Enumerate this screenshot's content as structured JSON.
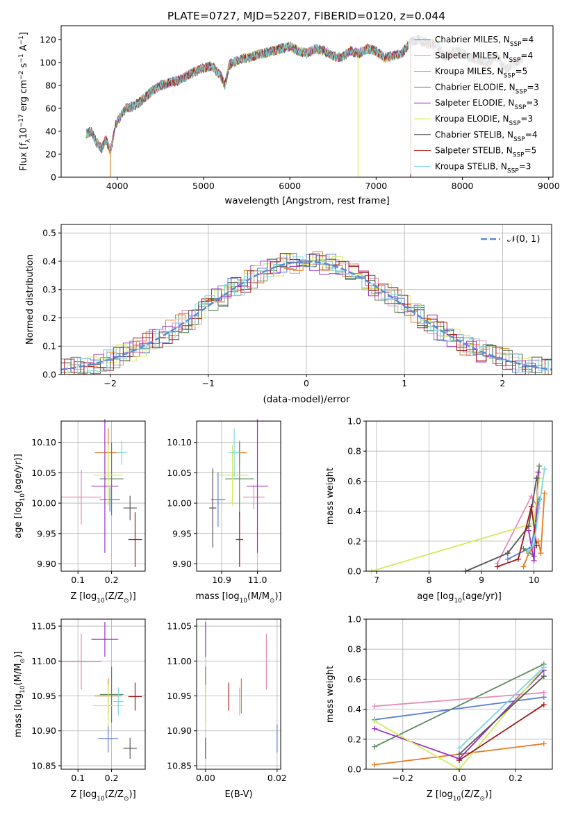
{
  "title": "PLATE=0727, MJD=52207, FIBERID=0120, z=0.044",
  "colors": {
    "chabrier_miles": "#5b7fd8",
    "salpeter_miles": "#e88ab8",
    "kroupa_miles": "#e8781e",
    "chabrier_elodie": "#5a8a5e",
    "salpeter_elodie": "#9b30c0",
    "kroupa_elodie": "#d4ea5a",
    "chabrier_stelib": "#555555",
    "salpeter_stelib": "#a01818",
    "kroupa_stelib": "#7ad8e0",
    "gauss": "#5b8ad8"
  },
  "chart_data": [
    {
      "id": "spectrum",
      "type": "line",
      "xlabel": "wavelength [Angstrom, rest frame]",
      "ylabel": "Flux [f",
      "xlim": [
        3350,
        9050
      ],
      "ylim": [
        0,
        132
      ],
      "xticks": [
        "4000",
        "5000",
        "6000",
        "7000",
        "8000",
        "9000"
      ],
      "xtick_values": [
        4000,
        5000,
        6000,
        7000,
        8000,
        9000
      ],
      "yticks": [
        "0",
        "20",
        "40",
        "60",
        "80",
        "100",
        "120"
      ],
      "ytick_values": [
        0,
        20,
        40,
        60,
        80,
        100,
        120
      ],
      "grid": false,
      "legend_position": "top-right",
      "legend": [
        {
          "name": "Chabrier MILES, N",
          "n": "=4",
          "color_key": "chabrier_miles"
        },
        {
          "name": "Salpeter MILES, N",
          "n": "=4",
          "color_key": "salpeter_miles"
        },
        {
          "name": "Kroupa MILES, N",
          "n": "=5",
          "color_key": "kroupa_miles"
        },
        {
          "name": "Chabrier ELODIE, N",
          "n": "=3",
          "color_key": "chabrier_elodie"
        },
        {
          "name": "Salpeter ELODIE, N",
          "n": "=3",
          "color_key": "salpeter_elodie"
        },
        {
          "name": "Kroupa ELODIE, N",
          "n": "=3",
          "color_key": "kroupa_elodie"
        },
        {
          "name": "Chabrier STELIB, N",
          "n": "=4",
          "color_key": "chabrier_stelib"
        },
        {
          "name": "Salpeter STELIB, N",
          "n": "=5",
          "color_key": "salpeter_stelib"
        },
        {
          "name": "Kroupa STELIB, N",
          "n": "=3",
          "color_key": "kroupa_stelib"
        }
      ],
      "ssp_subscript": "SSP",
      "continuum": {
        "x": [
          3640,
          3700,
          3760,
          3820,
          3870,
          3920,
          3980,
          4050,
          4100,
          4200,
          4300,
          4400,
          4500,
          4600,
          4700,
          4800,
          4900,
          5000,
          5100,
          5200,
          5250,
          5300,
          5400,
          5500,
          5600,
          5700,
          5800,
          5900,
          6000,
          6100,
          6200,
          6300,
          6400,
          6500,
          6600,
          6700,
          6800,
          6900,
          7000,
          7100,
          7200,
          7300,
          7400,
          7500,
          7600,
          7700,
          7800,
          7900,
          8000,
          8100,
          8200,
          8300,
          8400,
          8500,
          8600,
          8700
        ],
        "y": [
          38,
          40,
          30,
          25,
          33,
          22,
          45,
          55,
          60,
          62,
          68,
          75,
          80,
          82,
          84,
          88,
          92,
          95,
          97,
          88,
          80,
          98,
          102,
          104,
          106,
          108,
          110,
          112,
          114,
          110,
          108,
          112,
          110,
          106,
          104,
          110,
          108,
          112,
          110,
          104,
          106,
          108,
          118,
          120,
          116,
          116,
          104,
          110,
          108,
          104,
          102,
          100,
          106,
          94,
          100,
          102
        ]
      },
      "drop_lines": [
        {
          "series": "kroupa_elodie",
          "x": 6790
        },
        {
          "series": "salpeter_stelib",
          "x": 7400
        },
        {
          "series": "kroupa_miles",
          "x": 3920
        }
      ]
    },
    {
      "id": "residuals",
      "type": "area",
      "xlabel": "(data-model)/error",
      "ylabel": "Normed distribution",
      "xlim": [
        -2.5,
        2.5
      ],
      "ylim": [
        0,
        0.53
      ],
      "xticks": [
        "−2",
        "−1",
        "0",
        "1",
        "2"
      ],
      "xtick_values": [
        -2,
        -1,
        0,
        1,
        2
      ],
      "yticks": [
        "0.0",
        "0.1",
        "0.2",
        "0.3",
        "0.4",
        "0.5"
      ],
      "ytick_values": [
        0,
        0.1,
        0.2,
        0.3,
        0.4,
        0.5
      ],
      "grid": true,
      "legend_position": "top-right",
      "legend": [
        {
          "name": "𝒩(0, 1)",
          "color_key": "gauss"
        }
      ]
    },
    {
      "id": "age_vs_Z",
      "type": "scatter",
      "xlabel": "Z [log",
      "xlabel_tail": "(Z/Z",
      "ylabel": "age  [log",
      "ylabel_tail": "(age/yr)]",
      "xlim": [
        0.05,
        0.3
      ],
      "ylim": [
        9.888,
        10.135
      ],
      "xticks": [
        "0.1",
        "0.2"
      ],
      "xtick_values": [
        0.1,
        0.2
      ],
      "yticks": [
        "9.90",
        "9.95",
        "10.00",
        "10.05",
        "10.10"
      ],
      "ytick_values": [
        9.9,
        9.95,
        10.0,
        10.05,
        10.1
      ],
      "grid": true,
      "points": [
        {
          "s": "chabrier_miles",
          "x": 0.195,
          "y": 10.006,
          "xe": 0.03,
          "ye": 0.02
        },
        {
          "s": "salpeter_miles",
          "x": 0.11,
          "y": 10.01,
          "xe": 0.06,
          "ye": 0.045
        },
        {
          "s": "kroupa_miles",
          "x": 0.19,
          "y": 10.083,
          "xe": 0.04,
          "ye": 0.04
        },
        {
          "s": "chabrier_elodie",
          "x": 0.2,
          "y": 10.04,
          "xe": 0.035,
          "ye": 0.06
        },
        {
          "s": "salpeter_elodie",
          "x": 0.18,
          "y": 10.028,
          "xe": 0.04,
          "ye": 0.11
        },
        {
          "s": "kroupa_elodie",
          "x": 0.19,
          "y": 10.046,
          "xe": 0.045,
          "ye": 0.05
        },
        {
          "s": "chabrier_stelib",
          "x": 0.255,
          "y": 9.992,
          "xe": 0.02,
          "ye": 0.02
        },
        {
          "s": "salpeter_stelib",
          "x": 0.27,
          "y": 9.94,
          "xe": 0.02,
          "ye": 0.045
        },
        {
          "s": "kroupa_stelib",
          "x": 0.23,
          "y": 10.083,
          "xe": 0.015,
          "ye": 0.02
        }
      ]
    },
    {
      "id": "age_vs_mass",
      "type": "scatter",
      "xlabel": "mass [log",
      "xlabel_tail": "(M/M",
      "xlim": [
        10.83,
        11.065
      ],
      "ylim": [
        9.888,
        10.135
      ],
      "xticks": [
        "10.9",
        "11.0"
      ],
      "xtick_values": [
        10.9,
        11.0
      ],
      "yticks": [
        "9.90",
        "9.95",
        "10.00",
        "10.05",
        "10.10"
      ],
      "ytick_values": [
        9.9,
        9.95,
        10.0,
        10.05,
        10.1
      ],
      "grid": true,
      "points": [
        {
          "s": "chabrier_miles",
          "x": 10.89,
          "y": 10.006,
          "xe": 0.02,
          "ye": 0.045
        },
        {
          "s": "salpeter_miles",
          "x": 10.99,
          "y": 10.01,
          "xe": 0.03,
          "ye": 0.02
        },
        {
          "s": "kroupa_miles",
          "x": 10.95,
          "y": 10.083,
          "xe": 0.02,
          "ye": 0.02
        },
        {
          "s": "chabrier_elodie",
          "x": 10.95,
          "y": 10.04,
          "xe": 0.04,
          "ye": 0.06
        },
        {
          "s": "salpeter_elodie",
          "x": 11.0,
          "y": 10.028,
          "xe": 0.03,
          "ye": 0.11
        },
        {
          "s": "kroupa_elodie",
          "x": 10.93,
          "y": 10.046,
          "xe": 0.045,
          "ye": 0.05
        },
        {
          "s": "chabrier_stelib",
          "x": 10.875,
          "y": 9.992,
          "xe": 0.01,
          "ye": 0.065
        },
        {
          "s": "salpeter_stelib",
          "x": 10.95,
          "y": 9.94,
          "xe": 0.01,
          "ye": 0.045
        },
        {
          "s": "kroupa_stelib",
          "x": 10.935,
          "y": 10.083,
          "xe": 0.015,
          "ye": 0.04
        }
      ]
    },
    {
      "id": "weight_vs_age",
      "type": "line",
      "xlabel": "age  [log",
      "xlabel_tail": "(age/yr)]",
      "ylabel": "mass weight",
      "xlim": [
        6.8,
        10.35
      ],
      "ylim": [
        0,
        1
      ],
      "xticks": [
        "7",
        "8",
        "9",
        "10"
      ],
      "xtick_values": [
        7,
        8,
        9,
        10
      ],
      "yticks": [
        "0.0",
        "0.2",
        "0.4",
        "0.6",
        "0.8",
        "1.0"
      ],
      "ytick_values": [
        0,
        0.2,
        0.4,
        0.6,
        0.8,
        1.0
      ],
      "grid": true,
      "series": [
        {
          "s": "chabrier_miles",
          "x": [
            9.5,
            9.95,
            10.1
          ],
          "y": [
            0.08,
            0.16,
            0.48
          ]
        },
        {
          "s": "salpeter_miles",
          "x": [
            9.3,
            9.95,
            10.08
          ],
          "y": [
            0.05,
            0.5,
            0.42
          ]
        },
        {
          "s": "kroupa_miles",
          "x": [
            9.8,
            9.9,
            10.08,
            10.13,
            10.2
          ],
          "y": [
            0.03,
            0.12,
            0.2,
            0.12,
            0.52
          ]
        },
        {
          "s": "chabrier_elodie",
          "x": [
            9.8,
            10.0,
            10.1
          ],
          "y": [
            0.15,
            0.1,
            0.7
          ]
        },
        {
          "s": "salpeter_elodie",
          "x": [
            9.9,
            10.0,
            10.08
          ],
          "y": [
            0.27,
            0.07,
            0.66
          ]
        },
        {
          "s": "kroupa_elodie",
          "x": [
            6.9,
            10.0,
            10.1
          ],
          "y": [
            0.0,
            0.32,
            0.62
          ]
        },
        {
          "s": "chabrier_stelib",
          "x": [
            8.7,
            9.5,
            9.9,
            10.05
          ],
          "y": [
            0.0,
            0.12,
            0.3,
            0.62
          ]
        },
        {
          "s": "salpeter_stelib",
          "x": [
            9.3,
            9.7,
            9.95,
            10.05
          ],
          "y": [
            0.03,
            0.08,
            0.43,
            0.17
          ]
        },
        {
          "s": "kroupa_stelib",
          "x": [
            9.9,
            10.0,
            10.2
          ],
          "y": [
            0.13,
            0.18,
            0.68
          ]
        }
      ]
    },
    {
      "id": "mass_vs_Z",
      "type": "scatter",
      "xlabel": "Z [log",
      "xlabel_tail": "(Z/Z",
      "ylabel": "mass [log",
      "ylabel_tail": "(M/M",
      "xlim": [
        0.05,
        0.3
      ],
      "ylim": [
        10.845,
        11.06
      ],
      "xticks": [
        "0.1",
        "0.2"
      ],
      "xtick_values": [
        0.1,
        0.2
      ],
      "yticks": [
        "10.85",
        "10.90",
        "10.95",
        "11.00",
        "11.05"
      ],
      "ytick_values": [
        10.85,
        10.9,
        10.95,
        11.0,
        11.05
      ],
      "grid": true,
      "points": [
        {
          "s": "chabrier_miles",
          "x": 0.19,
          "y": 10.889,
          "xe": 0.03,
          "ye": 0.02
        },
        {
          "s": "salpeter_miles",
          "x": 0.11,
          "y": 10.999,
          "xe": 0.06,
          "ye": 0.04
        },
        {
          "s": "kroupa_miles",
          "x": 0.19,
          "y": 10.95,
          "xe": 0.04,
          "ye": 0.025
        },
        {
          "s": "chabrier_elodie",
          "x": 0.2,
          "y": 10.952,
          "xe": 0.035,
          "ye": 0.04
        },
        {
          "s": "salpeter_elodie",
          "x": 0.18,
          "y": 11.031,
          "xe": 0.04,
          "ye": 0.025
        },
        {
          "s": "kroupa_elodie",
          "x": 0.19,
          "y": 10.936,
          "xe": 0.045,
          "ye": 0.03
        },
        {
          "s": "chabrier_stelib",
          "x": 0.255,
          "y": 10.875,
          "xe": 0.02,
          "ye": 0.015
        },
        {
          "s": "salpeter_stelib",
          "x": 0.27,
          "y": 10.949,
          "xe": 0.02,
          "ye": 0.02
        },
        {
          "s": "kroupa_stelib",
          "x": 0.22,
          "y": 10.942,
          "xe": 0.015,
          "ye": 0.02
        }
      ]
    },
    {
      "id": "mass_vs_ebv",
      "type": "scatter",
      "xlabel": "E(B-V)",
      "xlim": [
        -0.0025,
        0.021
      ],
      "ylim": [
        10.845,
        11.06
      ],
      "xticks": [
        "0.00",
        "0.02"
      ],
      "xtick_values": [
        0,
        0.02
      ],
      "yticks": [
        "10.85",
        "10.90",
        "10.95",
        "11.00",
        "11.05"
      ],
      "ytick_values": [
        10.85,
        10.9,
        10.95,
        11.0,
        11.05
      ],
      "grid": true,
      "points": [
        {
          "s": "chabrier_miles",
          "x": 0.02,
          "y": 10.889,
          "xe": 0,
          "ye": 0.02
        },
        {
          "s": "salpeter_miles",
          "x": 0.017,
          "y": 10.999,
          "xe": 0,
          "ye": 0.04
        },
        {
          "s": "kroupa_miles",
          "x": 0.01,
          "y": 10.95,
          "xe": 0,
          "ye": 0.025
        },
        {
          "s": "chabrier_elodie",
          "x": 0.0,
          "y": 10.952,
          "xe": 0,
          "ye": 0.04
        },
        {
          "s": "salpeter_elodie",
          "x": 0.0,
          "y": 11.031,
          "xe": 0,
          "ye": 0.025
        },
        {
          "s": "kroupa_elodie",
          "x": 0.0,
          "y": 10.936,
          "xe": 0,
          "ye": 0.03
        },
        {
          "s": "chabrier_stelib",
          "x": 0.0,
          "y": 10.875,
          "xe": 0,
          "ye": 0.015
        },
        {
          "s": "salpeter_stelib",
          "x": 0.0065,
          "y": 10.949,
          "xe": 0,
          "ye": 0.02
        },
        {
          "s": "kroupa_stelib",
          "x": 0.0095,
          "y": 10.942,
          "xe": 0,
          "ye": 0.02
        }
      ]
    },
    {
      "id": "weight_vs_Z",
      "type": "line",
      "xlabel": "Z [log",
      "xlabel_tail": "(Z/Z",
      "ylabel": "mass weight",
      "xlim": [
        -0.33,
        0.33
      ],
      "ylim": [
        0,
        1
      ],
      "xticks": [
        "−0.2",
        "0.0",
        "0.2"
      ],
      "xtick_values": [
        -0.2,
        0,
        0.2
      ],
      "yticks": [
        "0.0",
        "0.2",
        "0.4",
        "0.6",
        "0.8",
        "1.0"
      ],
      "ytick_values": [
        0,
        0.2,
        0.4,
        0.6,
        0.8,
        1.0
      ],
      "grid": true,
      "series": [
        {
          "s": "chabrier_miles",
          "x": [
            -0.3,
            0.3
          ],
          "y": [
            0.33,
            0.48
          ]
        },
        {
          "s": "salpeter_miles",
          "x": [
            -0.3,
            0.3
          ],
          "y": [
            0.42,
            0.51
          ]
        },
        {
          "s": "kroupa_miles",
          "x": [
            -0.3,
            0.3
          ],
          "y": [
            0.03,
            0.17
          ]
        },
        {
          "s": "chabrier_elodie",
          "x": [
            -0.3,
            0.3
          ],
          "y": [
            0.15,
            0.7
          ]
        },
        {
          "s": "salpeter_elodie",
          "x": [
            -0.3,
            0.0,
            0.3
          ],
          "y": [
            0.27,
            0.07,
            0.66
          ]
        },
        {
          "s": "kroupa_elodie",
          "x": [
            -0.3,
            0.0,
            0.3
          ],
          "y": [
            0.32,
            0.0,
            0.68
          ]
        },
        {
          "s": "chabrier_stelib",
          "x": [
            0.0,
            0.3
          ],
          "y": [
            0.1,
            0.62
          ]
        },
        {
          "s": "salpeter_stelib",
          "x": [
            0.0,
            0.3
          ],
          "y": [
            0.06,
            0.43
          ]
        },
        {
          "s": "kroupa_stelib",
          "x": [
            0.0,
            0.3
          ],
          "y": [
            0.14,
            0.68
          ]
        }
      ]
    }
  ]
}
